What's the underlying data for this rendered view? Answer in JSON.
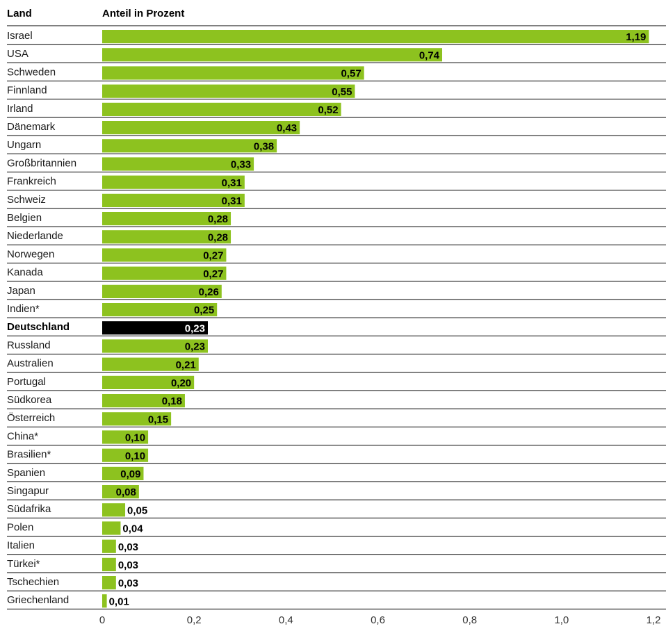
{
  "chart_data": {
    "type": "bar",
    "orientation": "horizontal",
    "header_category": "Land",
    "header_value": "Anteil in Prozent",
    "categories": [
      "Israel",
      "USA",
      "Schweden",
      "Finnland",
      "Irland",
      "Dänemark",
      "Ungarn",
      "Großbritannien",
      "Frankreich",
      "Schweiz",
      "Belgien",
      "Niederlande",
      "Norwegen",
      "Kanada",
      "Japan",
      "Indien*",
      "Deutschland",
      "Russland",
      "Australien",
      "Portugal",
      "Südkorea",
      "Österreich",
      "China*",
      "Brasilien*",
      "Spanien",
      "Singapur",
      "Südafrika",
      "Polen",
      "Italien",
      "Türkei*",
      "Tschechien",
      "Griechenland"
    ],
    "values": [
      1.19,
      0.74,
      0.57,
      0.55,
      0.52,
      0.43,
      0.38,
      0.33,
      0.31,
      0.31,
      0.28,
      0.28,
      0.27,
      0.27,
      0.26,
      0.25,
      0.23,
      0.23,
      0.21,
      0.2,
      0.18,
      0.15,
      0.1,
      0.1,
      0.09,
      0.08,
      0.05,
      0.04,
      0.03,
      0.03,
      0.03,
      0.01
    ],
    "value_labels": [
      "1,19",
      "0,74",
      "0,57",
      "0,55",
      "0,52",
      "0,43",
      "0,38",
      "0,33",
      "0,31",
      "0,31",
      "0,28",
      "0,28",
      "0,27",
      "0,27",
      "0,26",
      "0,25",
      "0,23",
      "0,23",
      "0,21",
      "0,20",
      "0,18",
      "0,15",
      "0,10",
      "0,10",
      "0,09",
      "0,08",
      "0,05",
      "0,04",
      "0,03",
      "0,03",
      "0,03",
      "0,01"
    ],
    "highlight": "Deutschland",
    "xlim": [
      0,
      1.2
    ],
    "xticks": [
      0,
      0.2,
      0.4,
      0.6,
      0.8,
      1.0,
      1.2
    ],
    "xtick_labels": [
      "0",
      "0,2",
      "0,4",
      "0,6",
      "0,8",
      "1,0",
      "1,2"
    ],
    "grid": false,
    "colors": {
      "bar": "#8dc21f",
      "highlight": "#000000",
      "rule": "#000000"
    }
  }
}
